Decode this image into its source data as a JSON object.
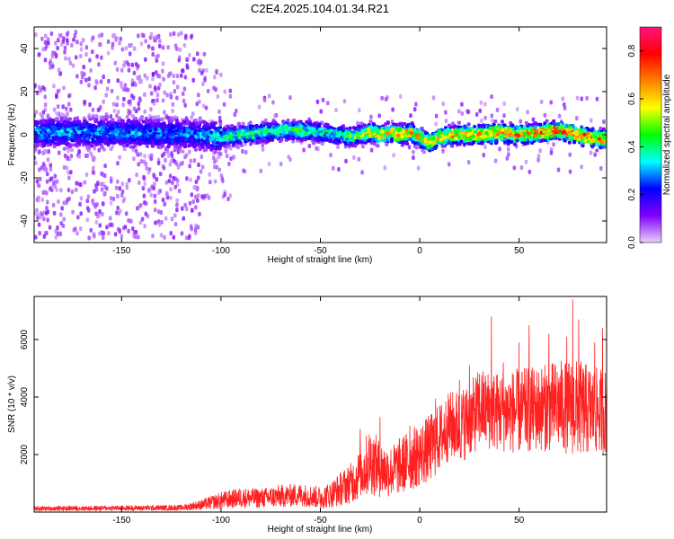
{
  "chart_data": [
    {
      "type": "heatmap",
      "title": "C2E4.2025.104.01.34.R21",
      "xlabel": "Height of straight line (km)",
      "ylabel": "Frequency (Hz)",
      "xlim": [
        -194,
        94
      ],
      "ylim": [
        -50,
        50
      ],
      "xticks": [
        -150,
        -100,
        -50,
        0,
        50
      ],
      "yticks": [
        -40,
        -20,
        0,
        20,
        40
      ],
      "colorbar": {
        "label": "Normalized spectral amplitude",
        "range": [
          0,
          0.9
        ],
        "ticks": [
          "0.0",
          "0.2",
          "0.4",
          "0.6",
          "0.8"
        ],
        "colormap": [
          "#e8d0f8",
          "#8000ff",
          "#0000ff",
          "#00ffff",
          "#00ff00",
          "#ffff00",
          "#ff8000",
          "#ff0000",
          "#ff1480"
        ]
      },
      "ridge": {
        "description_points_x": [
          -194,
          -150,
          -110,
          -100,
          -90,
          -80,
          -70,
          -60,
          -50,
          -40,
          -35,
          -30,
          -25,
          -20,
          -15,
          -10,
          -5,
          0,
          5,
          10,
          20,
          30,
          40,
          50,
          60,
          70,
          80,
          90,
          94
        ],
        "center_hz": [
          1,
          1,
          0,
          -1,
          0,
          1,
          2,
          2,
          1,
          0,
          -1,
          0,
          1,
          0,
          1,
          0,
          1,
          -1,
          -4,
          -1,
          0,
          0,
          1,
          0,
          1,
          2,
          0,
          -2,
          -2
        ],
        "peak_amplitude": [
          0.35,
          0.35,
          0.35,
          0.45,
          0.55,
          0.5,
          0.55,
          0.5,
          0.45,
          0.45,
          0.55,
          0.6,
          0.7,
          0.7,
          0.75,
          0.75,
          0.8,
          0.7,
          0.65,
          0.7,
          0.75,
          0.75,
          0.8,
          0.8,
          0.8,
          0.85,
          0.85,
          0.8,
          0.8
        ]
      }
    },
    {
      "type": "line",
      "xlabel": "Height of straight line (km)",
      "ylabel": "SNR (10 * v/v)",
      "xlim": [
        -194,
        94
      ],
      "ylim": [
        0,
        7500
      ],
      "xticks": [
        -150,
        -100,
        -50,
        0,
        50
      ],
      "yticks": [
        2000,
        4000,
        6000
      ],
      "color": "#ff2020",
      "envelope": {
        "x": [
          -194,
          -120,
          -110,
          -100,
          -90,
          -80,
          -70,
          -60,
          -50,
          -45,
          -40,
          -35,
          -30,
          -25,
          -20,
          -15,
          -10,
          -5,
          0,
          5,
          10,
          15,
          20,
          25,
          30,
          40,
          50,
          60,
          70,
          80,
          90,
          94
        ],
        "mean": [
          120,
          150,
          250,
          400,
          500,
          480,
          550,
          600,
          500,
          600,
          800,
          1000,
          1300,
          1800,
          1500,
          1400,
          1600,
          1800,
          2000,
          2200,
          2600,
          3000,
          3000,
          3200,
          3600,
          3500,
          3500,
          3600,
          3700,
          3600,
          3500,
          3500
        ],
        "spread": [
          80,
          100,
          180,
          300,
          350,
          350,
          400,
          400,
          400,
          450,
          600,
          700,
          900,
          1200,
          1000,
          900,
          1000,
          1100,
          1100,
          1200,
          1200,
          1200,
          1300,
          1300,
          1400,
          1400,
          1500,
          1500,
          1600,
          1700,
          1500,
          1500
        ],
        "peaks": [
          [
            -30,
            2900
          ],
          [
            -20,
            3300
          ],
          [
            -5,
            3000
          ],
          [
            8,
            3950
          ],
          [
            20,
            4600
          ],
          [
            25,
            5100
          ],
          [
            30,
            4800
          ],
          [
            36,
            6800
          ],
          [
            42,
            5200
          ],
          [
            50,
            5900
          ],
          [
            55,
            6500
          ],
          [
            65,
            6200
          ],
          [
            74,
            6100
          ],
          [
            77,
            7400
          ],
          [
            80,
            6700
          ],
          [
            88,
            5900
          ],
          [
            92,
            6400
          ]
        ]
      }
    }
  ]
}
